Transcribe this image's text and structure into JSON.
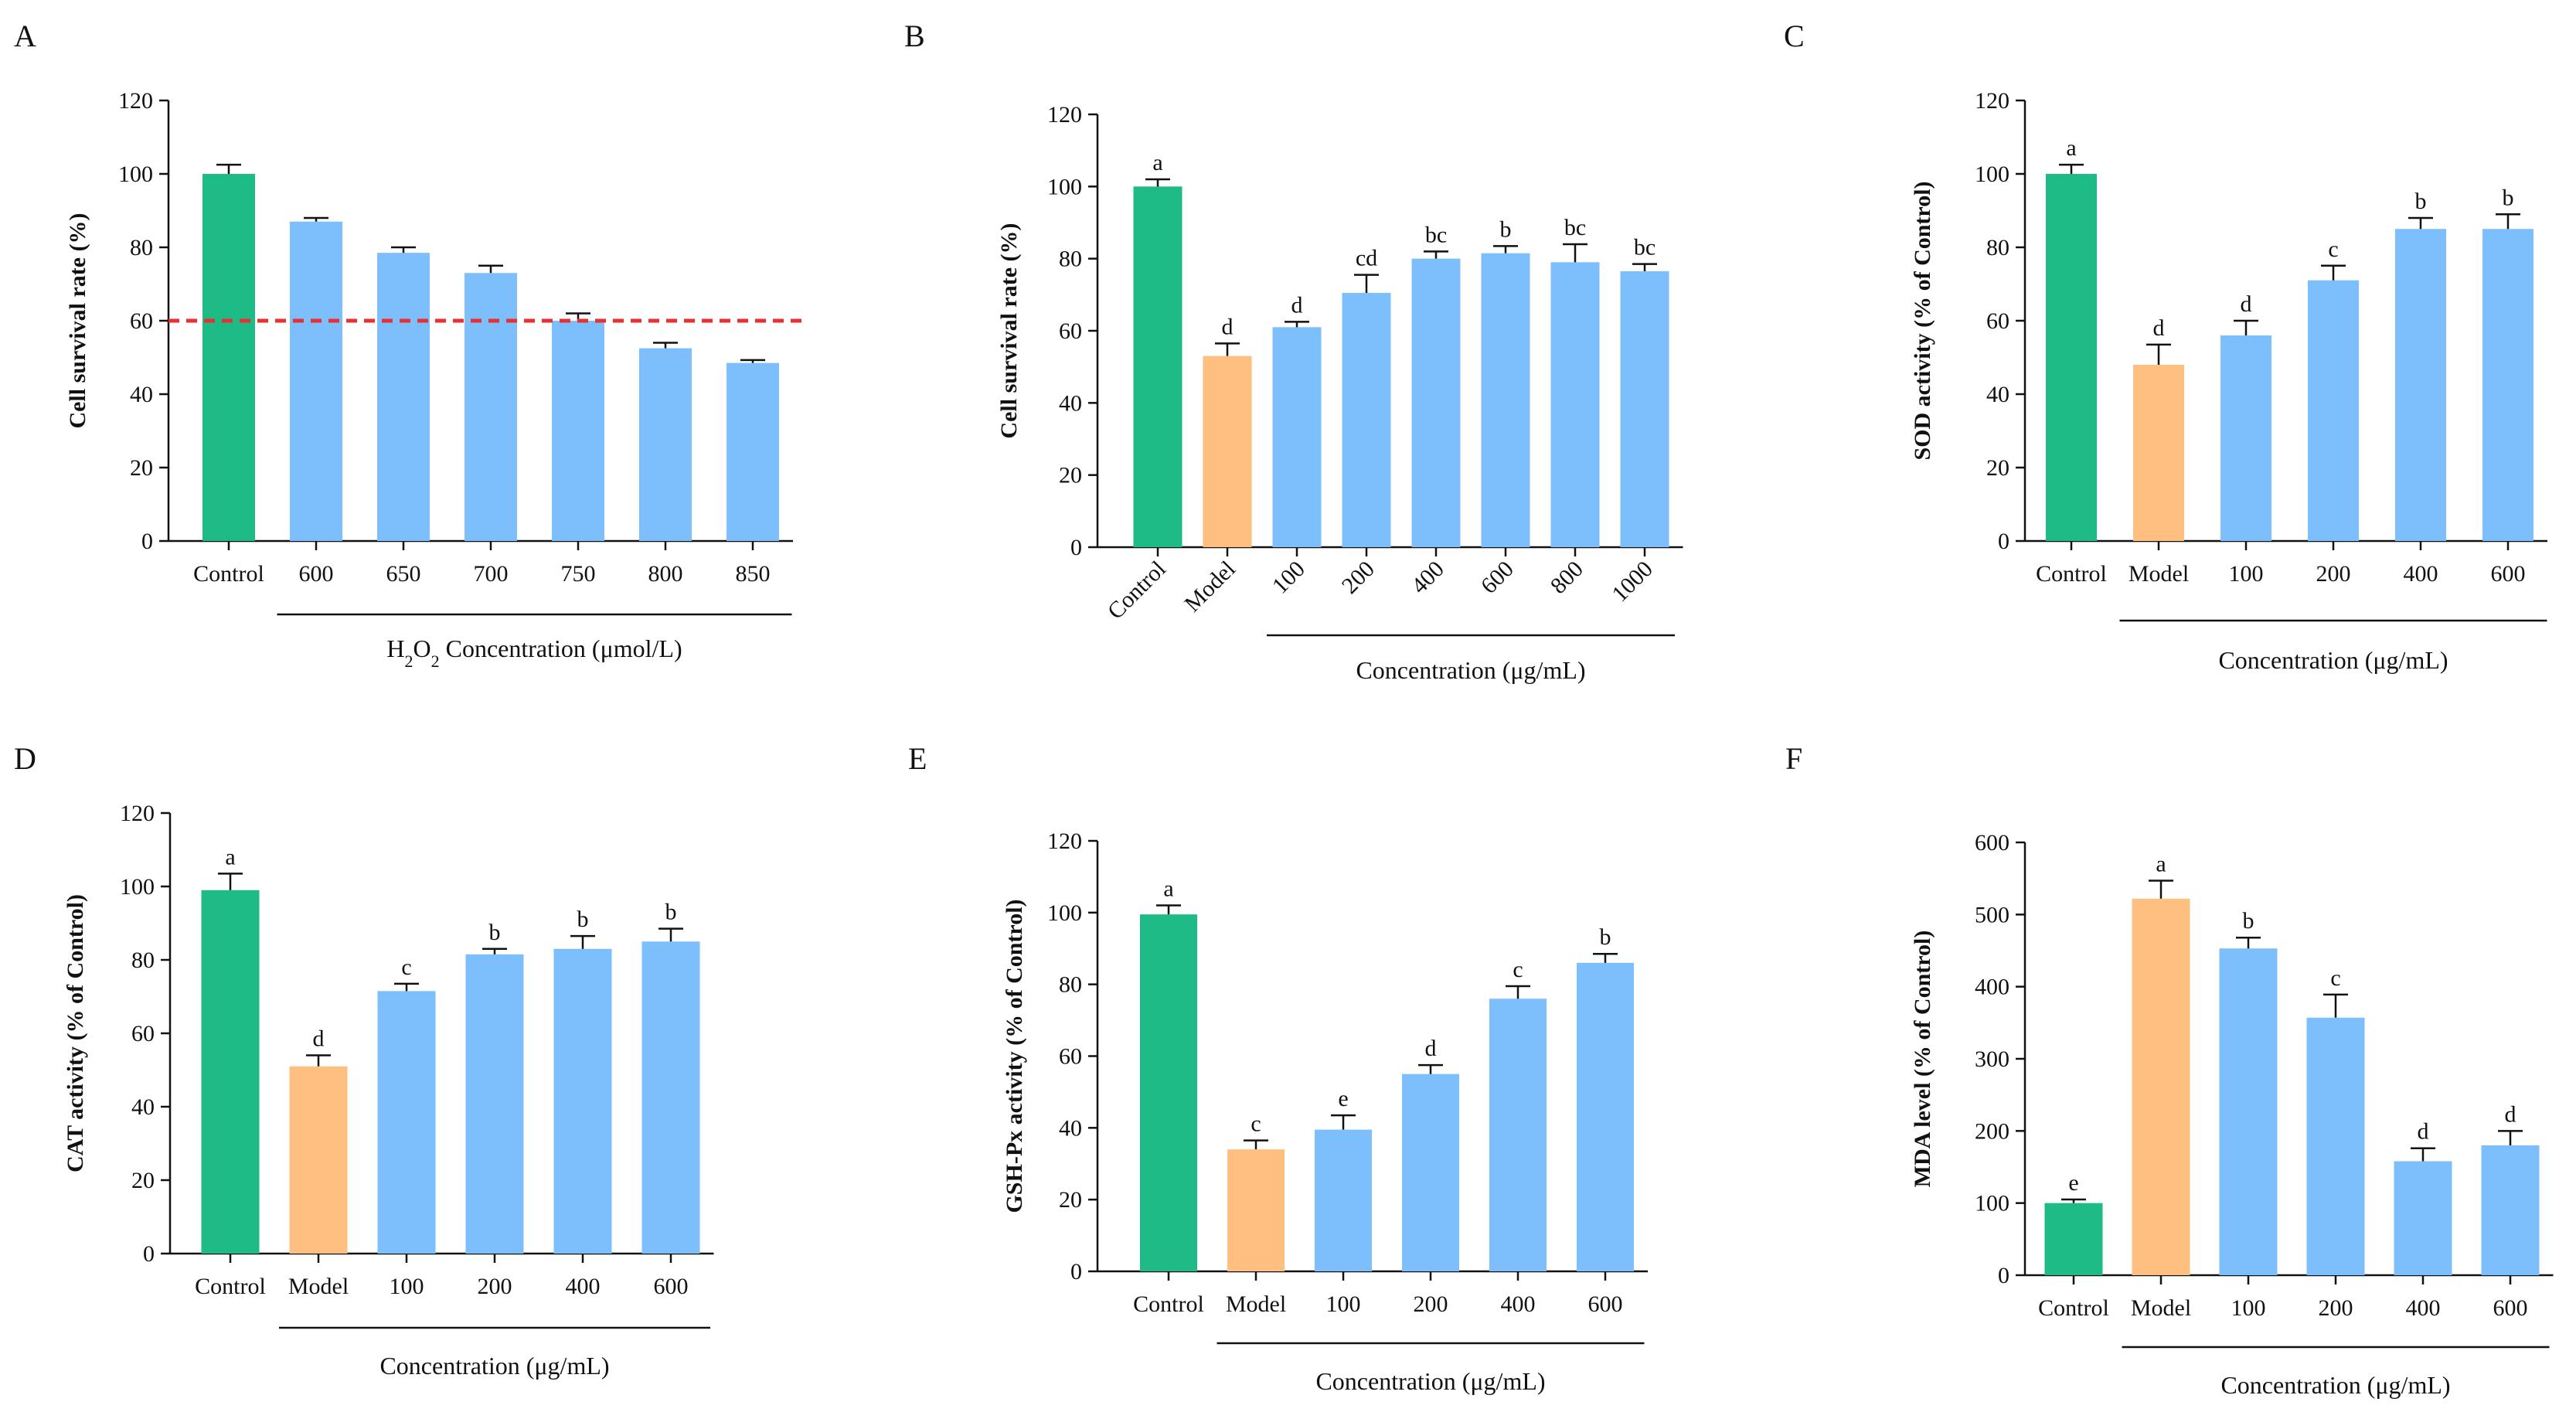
{
  "colors": {
    "control": "#1EBB87",
    "model": "#FEBF80",
    "treated": "#7DBEFC",
    "threshold": "#E83030"
  },
  "chart_data": [
    {
      "panel": "A",
      "type": "bar",
      "categories": [
        "Control",
        "600",
        "650",
        "700",
        "750",
        "800",
        "850"
      ],
      "values": [
        100,
        87,
        78.5,
        73,
        60,
        52.5,
        48.5
      ],
      "errors": [
        2.5,
        1,
        1.5,
        2,
        2,
        1.5,
        0.8
      ],
      "kinds": [
        "control",
        "treated",
        "treated",
        "treated",
        "treated",
        "treated",
        "treated"
      ],
      "sig": [],
      "ylabel": "Cell survival rate (%)",
      "xlabel_parts": [
        "H",
        "2",
        "O",
        "2",
        " Concentration (μmol/L)"
      ],
      "ylim": [
        0,
        120
      ],
      "yticks": [
        0,
        20,
        40,
        60,
        80,
        100,
        120
      ],
      "threshold": 60,
      "rotate_labels": false,
      "group_line_from": 1
    },
    {
      "panel": "B",
      "type": "bar",
      "categories": [
        "Control",
        "Model",
        "100",
        "200",
        "400",
        "600",
        "800",
        "1000"
      ],
      "values": [
        100,
        53,
        61,
        70.5,
        80,
        81.5,
        79,
        76.5
      ],
      "errors": [
        2,
        3.5,
        1.5,
        5,
        2,
        2,
        5,
        2
      ],
      "kinds": [
        "control",
        "model",
        "treated",
        "treated",
        "treated",
        "treated",
        "treated",
        "treated"
      ],
      "sig": [
        "a",
        "d",
        "d",
        "cd",
        "bc",
        "b",
        "bc",
        "bc"
      ],
      "ylabel": "Cell survival rate (%)",
      "xlabel": "Concentration (μg/mL)",
      "ylim": [
        0,
        120
      ],
      "yticks": [
        0,
        20,
        40,
        60,
        80,
        100,
        120
      ],
      "rotate_labels": true,
      "group_line_from": 2
    },
    {
      "panel": "C",
      "type": "bar",
      "categories": [
        "Control",
        "Model",
        "100",
        "200",
        "400",
        "600"
      ],
      "values": [
        100,
        48,
        56,
        71,
        85,
        85
      ],
      "errors": [
        2.5,
        5.5,
        4,
        4,
        3,
        4
      ],
      "kinds": [
        "control",
        "model",
        "treated",
        "treated",
        "treated",
        "treated"
      ],
      "sig": [
        "a",
        "d",
        "d",
        "c",
        "b",
        "b"
      ],
      "ylabel": "SOD activity (% of Control)",
      "xlabel": "Concentration (μg/mL)",
      "ylim": [
        0,
        120
      ],
      "yticks": [
        0,
        20,
        40,
        60,
        80,
        100,
        120
      ],
      "rotate_labels": false,
      "group_line_from": 1
    },
    {
      "panel": "D",
      "type": "bar",
      "categories": [
        "Control",
        "Model",
        "100",
        "200",
        "400",
        "600"
      ],
      "values": [
        99,
        51,
        71.5,
        81.5,
        83,
        85
      ],
      "errors": [
        4.5,
        3,
        2,
        1.5,
        3.5,
        3.5
      ],
      "kinds": [
        "control",
        "model",
        "treated",
        "treated",
        "treated",
        "treated"
      ],
      "sig": [
        "a",
        "d",
        "c",
        "b",
        "b",
        "b"
      ],
      "ylabel": "CAT activity (% of Control)",
      "xlabel": "Concentration (μg/mL)",
      "ylim": [
        0,
        120
      ],
      "yticks": [
        0,
        20,
        40,
        60,
        80,
        100,
        120
      ],
      "rotate_labels": false,
      "group_line_from": 1
    },
    {
      "panel": "E",
      "type": "bar",
      "categories": [
        "Control",
        "Model",
        "100",
        "200",
        "400",
        "600"
      ],
      "values": [
        99.5,
        34,
        39.5,
        55,
        76,
        86
      ],
      "errors": [
        2.5,
        2.5,
        4,
        2.5,
        3.5,
        2.5
      ],
      "kinds": [
        "control",
        "model",
        "treated",
        "treated",
        "treated",
        "treated"
      ],
      "sig": [
        "a",
        "c",
        "e",
        "d",
        "c",
        "b"
      ],
      "ylabel": "GSH-Px activity (% of Control)",
      "xlabel": "Concentration (μg/mL)",
      "ylim": [
        0,
        120
      ],
      "yticks": [
        0,
        20,
        40,
        60,
        80,
        100,
        120
      ],
      "rotate_labels": false,
      "group_line_from": 1
    },
    {
      "panel": "F",
      "type": "bar",
      "categories": [
        "Control",
        "Model",
        "100",
        "200",
        "400",
        "600"
      ],
      "values": [
        100,
        522,
        453,
        357,
        158,
        180
      ],
      "errors": [
        5,
        25,
        15,
        32,
        18,
        20
      ],
      "kinds": [
        "control",
        "model",
        "treated",
        "treated",
        "treated",
        "treated"
      ],
      "sig": [
        "e",
        "a",
        "b",
        "c",
        "d",
        "d"
      ],
      "ylabel": "MDA level (% of Control)",
      "xlabel": "Concentration (μg/mL)",
      "ylim": [
        0,
        600
      ],
      "yticks": [
        0,
        100,
        200,
        300,
        400,
        500,
        600
      ],
      "rotate_labels": false,
      "group_line_from": 1
    }
  ]
}
